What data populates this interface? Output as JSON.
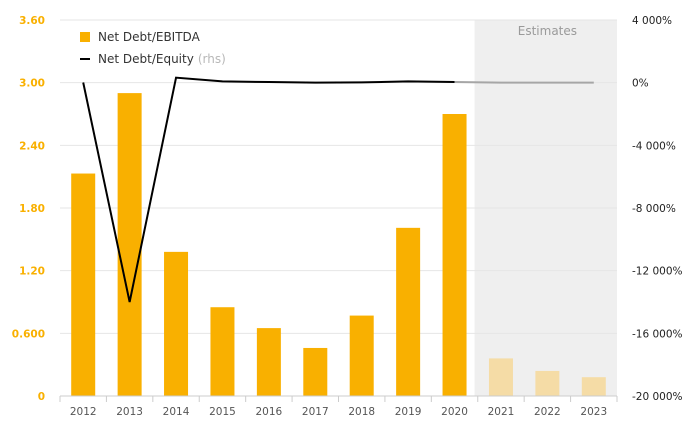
{
  "colors": {
    "bar": "#F9B000",
    "bar_estimate": "#F5DCA6",
    "line": "#000000",
    "line_estimate": "#A6A6A6",
    "estimate_shade": "#EFEFEF",
    "left_axis_text": "#F9B000",
    "right_axis_text": "#222222",
    "x_axis_text": "#555555",
    "grid": "#E6E6E6"
  },
  "legend": {
    "bar_label": "Net Debt/EBITDA",
    "line_label": "Net Debt/Equity",
    "line_suffix": "(rhs)"
  },
  "estimates_label": "Estimates",
  "chart_data": {
    "type": "bar",
    "categories": [
      "2012",
      "2013",
      "2014",
      "2015",
      "2016",
      "2017",
      "2018",
      "2019",
      "2020",
      "2021",
      "2022",
      "2023"
    ],
    "estimate_start": "2021",
    "series": [
      {
        "name": "Net Debt/EBITDA",
        "type": "bar",
        "axis": "left",
        "values": [
          2.13,
          2.9,
          1.38,
          0.85,
          0.65,
          0.46,
          0.77,
          1.61,
          2.7,
          0.36,
          0.24,
          0.18
        ]
      },
      {
        "name": "Net Debt/Equity",
        "type": "line",
        "axis": "right",
        "values": [
          10,
          -14000,
          320,
          80,
          40,
          0,
          20,
          80,
          40,
          0,
          0,
          0
        ]
      }
    ],
    "left_axis": {
      "ylim": [
        0,
        3.6
      ],
      "ticks": [
        0,
        0.6,
        1.2,
        1.8,
        2.4,
        3.0,
        3.6
      ],
      "tick_labels": [
        "0",
        "0.600",
        "1.20",
        "1.80",
        "2.40",
        "3.00",
        "3.60"
      ]
    },
    "right_axis": {
      "ylim": [
        -20000,
        4000
      ],
      "ticks": [
        -20000,
        -16000,
        -12000,
        -8000,
        -4000,
        0,
        4000
      ],
      "tick_labels": [
        "-20 000%",
        "-16 000%",
        "-12 000%",
        "-8 000%",
        "-4 000%",
        "0%",
        "4 000%"
      ]
    },
    "grid": true,
    "legend_position": "top-left"
  }
}
